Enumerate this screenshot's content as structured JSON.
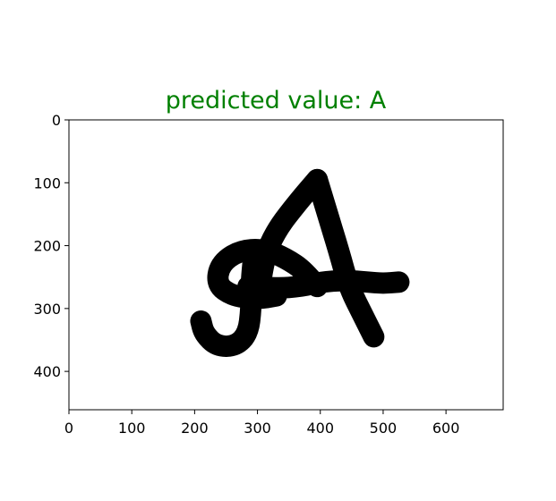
{
  "chart_data": {
    "type": "image",
    "title": "predicted value: A",
    "title_color": "#008000",
    "xlim": [
      0,
      691
    ],
    "ylim": [
      0,
      461
    ],
    "y_axis_inverted": true,
    "xticks": [
      0,
      100,
      200,
      300,
      400,
      500,
      600
    ],
    "yticks": [
      0,
      100,
      200,
      300,
      400
    ],
    "xtick_labels": [
      "0",
      "100",
      "200",
      "300",
      "400",
      "500",
      "600"
    ],
    "ytick_labels": [
      "0",
      "100",
      "200",
      "300",
      "400"
    ],
    "image_background": "#ffffff",
    "ink_color": "#000000",
    "strokes": [
      {
        "name": "left-diagonal-stroke",
        "points": [
          [
            305,
            260
          ],
          [
            310,
            220
          ],
          [
            330,
            175
          ],
          [
            365,
            130
          ],
          [
            395,
            95
          ]
        ]
      },
      {
        "name": "right-diagonal-stroke",
        "points": [
          [
            395,
            95
          ],
          [
            410,
            145
          ],
          [
            430,
            210
          ],
          [
            445,
            265
          ],
          [
            470,
            315
          ],
          [
            485,
            345
          ]
        ]
      },
      {
        "name": "cross-loop-stroke",
        "points": [
          [
            285,
            265
          ],
          [
            330,
            268
          ],
          [
            370,
            265
          ],
          [
            400,
            258
          ],
          [
            440,
            255
          ],
          [
            475,
            258
          ],
          [
            500,
            260
          ],
          [
            525,
            258
          ]
        ]
      },
      {
        "name": "swirl-stroke",
        "points": [
          [
            395,
            265
          ],
          [
            375,
            240
          ],
          [
            345,
            220
          ],
          [
            310,
            205
          ],
          [
            270,
            208
          ],
          [
            240,
            230
          ],
          [
            235,
            262
          ],
          [
            260,
            280
          ],
          [
            300,
            285
          ],
          [
            330,
            280
          ]
        ]
      },
      {
        "name": "hook-stroke",
        "points": [
          [
            295,
            210
          ],
          [
            290,
            250
          ],
          [
            290,
            300
          ],
          [
            285,
            340
          ],
          [
            265,
            360
          ],
          [
            235,
            360
          ],
          [
            215,
            340
          ],
          [
            210,
            320
          ]
        ]
      }
    ]
  }
}
